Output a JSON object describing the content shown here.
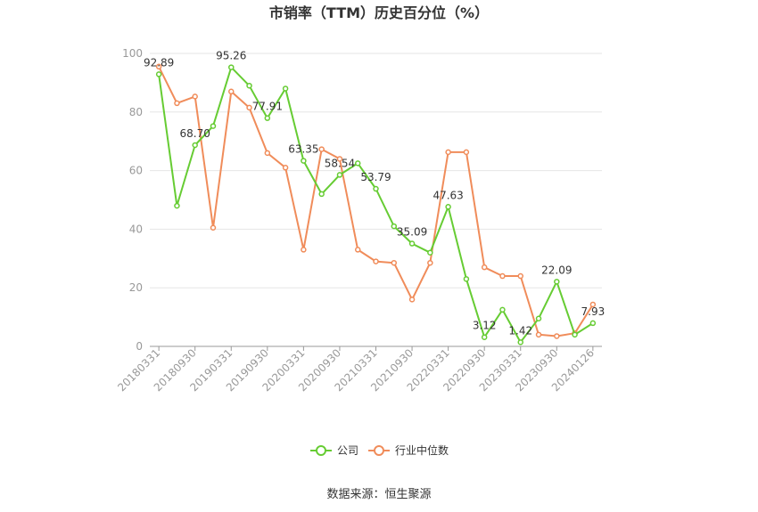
{
  "chart_data": {
    "type": "line",
    "title": "市销率（TTM）历史百分位（%）",
    "source": "数据来源：恒生聚源",
    "ylim": [
      0,
      100
    ],
    "yticks": [
      0,
      20,
      40,
      60,
      80,
      100
    ],
    "grid": true,
    "legend_position": "bottom",
    "x": [
      "20180331",
      "20180630",
      "20180930",
      "20181231",
      "20190331",
      "20190630",
      "20190930",
      "20191231",
      "20200331",
      "20200630",
      "20200930",
      "20201231",
      "20210331",
      "20210630",
      "20210930",
      "20211231",
      "20220331",
      "20220630",
      "20220930",
      "20221231",
      "20230331",
      "20230630",
      "20230930",
      "20231231",
      "20240126"
    ],
    "xtick_labels": [
      "20180331",
      "20180930",
      "20190331",
      "20190930",
      "20200331",
      "20200930",
      "20210331",
      "20210930",
      "20220331",
      "20220930",
      "20230331",
      "20230930",
      "20240126"
    ],
    "series": [
      {
        "name": "公司",
        "color": "#66cc33",
        "values": [
          92.89,
          48.0,
          68.7,
          75.2,
          95.26,
          89.0,
          77.91,
          88.0,
          63.35,
          52.0,
          58.54,
          62.5,
          53.79,
          41.0,
          35.09,
          32.0,
          47.63,
          23.0,
          3.12,
          12.5,
          1.42,
          9.5,
          22.09,
          4.0,
          7.93
        ],
        "labels": {
          "0": "92.89",
          "2": "68.70",
          "4": "95.26",
          "6": "77.91",
          "8": "63.35",
          "10": "58.54",
          "12": "53.79",
          "14": "35.09",
          "16": "47.63",
          "18": "3.12",
          "20": "1.42",
          "22": "22.09",
          "24": "7.93"
        }
      },
      {
        "name": "行业中位数",
        "color": "#f08c5a",
        "values": [
          95.5,
          83.0,
          85.3,
          40.5,
          87.0,
          81.5,
          66.0,
          61.0,
          33.0,
          67.3,
          64.0,
          33.0,
          29.0,
          28.5,
          16.0,
          28.5,
          66.3,
          66.3,
          27.0,
          24.0,
          24.0,
          4.0,
          3.5,
          4.5,
          14.3
        ]
      }
    ]
  }
}
